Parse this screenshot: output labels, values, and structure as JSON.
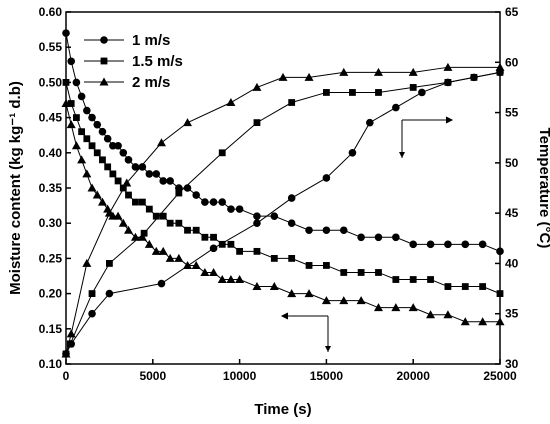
{
  "chart_data": {
    "type": "scatter",
    "xlabel": "Time (s)",
    "ylabel_left": "Moisture content (kg kg⁻¹ d.b)",
    "ylabel_right": "Temperature (°C)",
    "xlim": [
      0,
      25000
    ],
    "ylim_left": [
      0.1,
      0.6
    ],
    "ylim_right": [
      30,
      65
    ],
    "x_ticks": [
      "0",
      "5000",
      "10000",
      "15000",
      "20000",
      "25000"
    ],
    "y_left_ticks": [
      "0.10",
      "0.15",
      "0.20",
      "0.25",
      "0.30",
      "0.35",
      "0.40",
      "0.45",
      "0.50",
      "0.55",
      "0.60"
    ],
    "y_right_ticks": [
      "30",
      "35",
      "40",
      "45",
      "50",
      "55",
      "60",
      "65"
    ],
    "legend": [
      "1 m/s",
      "1.5 m/s",
      "2 m/s"
    ],
    "legend_position": "top-left",
    "grid": false,
    "moisture_series": [
      {
        "name": "1 m/s",
        "marker": "circle",
        "axis": "left",
        "x": [
          0,
          300,
          600,
          900,
          1200,
          1500,
          1800,
          2100,
          2400,
          2700,
          3000,
          3300,
          3600,
          4000,
          4400,
          4800,
          5200,
          5600,
          6000,
          6500,
          7000,
          7500,
          8000,
          8500,
          9000,
          9500,
          10000,
          11000,
          12000,
          13000,
          14000,
          15000,
          16000,
          17000,
          18000,
          19000,
          20000,
          21000,
          22000,
          23000,
          24000,
          25000
        ],
        "y": [
          0.57,
          0.53,
          0.5,
          0.48,
          0.46,
          0.45,
          0.44,
          0.43,
          0.42,
          0.41,
          0.41,
          0.4,
          0.39,
          0.38,
          0.38,
          0.37,
          0.37,
          0.36,
          0.36,
          0.35,
          0.35,
          0.34,
          0.33,
          0.33,
          0.33,
          0.32,
          0.32,
          0.31,
          0.31,
          0.3,
          0.29,
          0.29,
          0.29,
          0.28,
          0.28,
          0.28,
          0.27,
          0.27,
          0.27,
          0.27,
          0.27,
          0.26
        ]
      },
      {
        "name": "1.5 m/s",
        "marker": "square",
        "axis": "left",
        "x": [
          0,
          300,
          600,
          900,
          1200,
          1500,
          1800,
          2100,
          2400,
          2700,
          3000,
          3300,
          3600,
          4000,
          4400,
          4800,
          5200,
          5600,
          6000,
          6500,
          7000,
          7500,
          8000,
          8500,
          9000,
          9500,
          10000,
          11000,
          12000,
          13000,
          14000,
          15000,
          16000,
          17000,
          18000,
          19000,
          20000,
          21000,
          22000,
          23000,
          24000,
          25000
        ],
        "y": [
          0.5,
          0.47,
          0.45,
          0.43,
          0.42,
          0.41,
          0.4,
          0.39,
          0.38,
          0.37,
          0.36,
          0.35,
          0.34,
          0.33,
          0.33,
          0.32,
          0.31,
          0.31,
          0.3,
          0.3,
          0.29,
          0.29,
          0.28,
          0.28,
          0.27,
          0.27,
          0.26,
          0.26,
          0.25,
          0.25,
          0.24,
          0.24,
          0.23,
          0.23,
          0.23,
          0.22,
          0.22,
          0.22,
          0.21,
          0.21,
          0.21,
          0.2
        ]
      },
      {
        "name": "2 m/s",
        "marker": "triangle",
        "axis": "left",
        "x": [
          0,
          300,
          600,
          900,
          1200,
          1500,
          1800,
          2100,
          2400,
          2700,
          3000,
          3300,
          3600,
          4000,
          4400,
          4800,
          5200,
          5600,
          6000,
          6500,
          7000,
          7500,
          8000,
          8500,
          9000,
          9500,
          10000,
          11000,
          12000,
          13000,
          14000,
          15000,
          16000,
          17000,
          18000,
          19000,
          20000,
          21000,
          22000,
          23000,
          24000,
          25000
        ],
        "y": [
          0.47,
          0.44,
          0.41,
          0.39,
          0.37,
          0.35,
          0.34,
          0.33,
          0.32,
          0.31,
          0.31,
          0.3,
          0.29,
          0.28,
          0.28,
          0.27,
          0.26,
          0.26,
          0.25,
          0.25,
          0.24,
          0.24,
          0.23,
          0.23,
          0.22,
          0.22,
          0.22,
          0.21,
          0.21,
          0.2,
          0.2,
          0.19,
          0.19,
          0.19,
          0.18,
          0.18,
          0.18,
          0.17,
          0.17,
          0.16,
          0.16,
          0.16
        ]
      }
    ],
    "temperature_series": [
      {
        "name": "1 m/s",
        "marker": "circle",
        "axis": "right",
        "x": [
          0,
          300,
          1500,
          2500,
          5500,
          8500,
          11000,
          13000,
          15000,
          16500,
          17500,
          19000,
          20500,
          22000,
          23500,
          25000
        ],
        "y": [
          31,
          32,
          35,
          37,
          38,
          41.5,
          44,
          46.5,
          48.5,
          51,
          54,
          55.5,
          57,
          58,
          58.5,
          59
        ]
      },
      {
        "name": "1.5 m/s",
        "marker": "square",
        "axis": "right",
        "x": [
          0,
          250,
          1500,
          2500,
          4500,
          6500,
          9000,
          11000,
          13000,
          15000,
          16500,
          18000,
          20000,
          22000,
          23500,
          25000
        ],
        "y": [
          31,
          32,
          37,
          40,
          43,
          47,
          51,
          54,
          56,
          57,
          57,
          57,
          57.5,
          58,
          58.5,
          59
        ]
      },
      {
        "name": "2 m/s",
        "marker": "triangle",
        "axis": "right",
        "x": [
          0,
          300,
          1200,
          2500,
          3500,
          5500,
          7000,
          9500,
          11000,
          12500,
          14000,
          16000,
          18000,
          20000,
          22000,
          25000
        ],
        "y": [
          31,
          33,
          40,
          45,
          48,
          52,
          54,
          56,
          57.5,
          58.5,
          58.5,
          59,
          59,
          59,
          59.5,
          59.5
        ]
      }
    ]
  }
}
